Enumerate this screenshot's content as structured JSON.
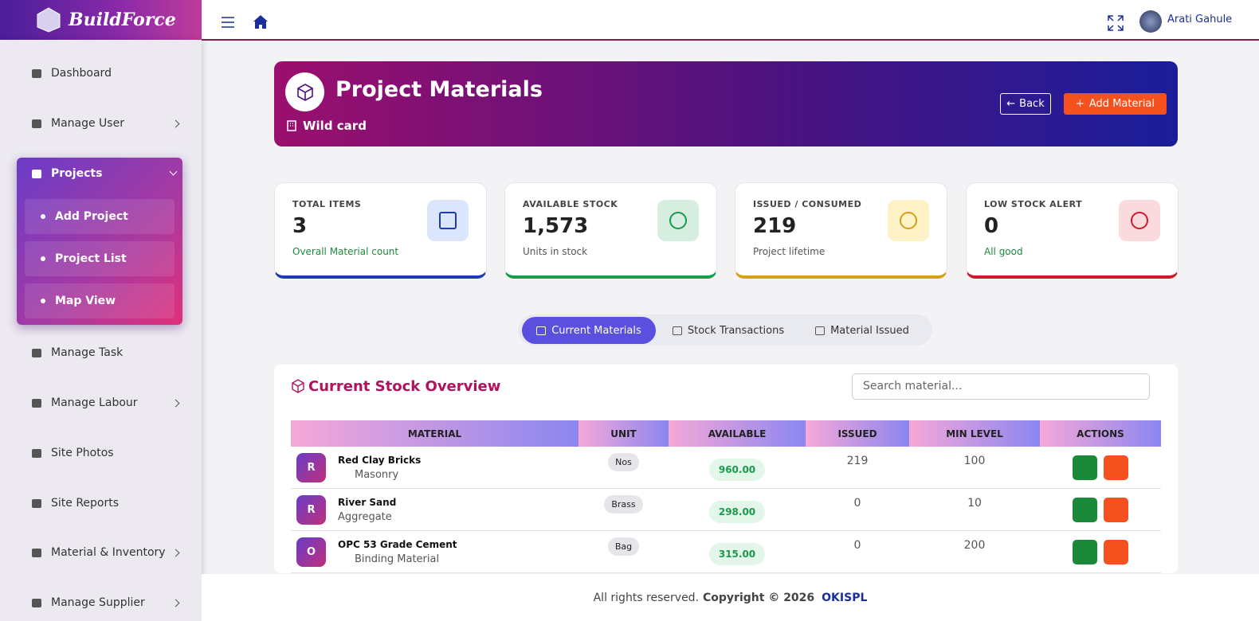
{
  "brand": "BuildForce",
  "topbar": {
    "user": "Arati Gahule"
  },
  "sidebar": {
    "items": [
      {
        "label": "Dashboard",
        "expandable": false
      },
      {
        "label": "Manage User",
        "expandable": true
      },
      {
        "label": "Projects",
        "expandable": true,
        "open": true,
        "children": [
          "Add Project",
          "Project List",
          "Map View"
        ]
      },
      {
        "label": "Manage Task",
        "expandable": false
      },
      {
        "label": "Manage Labour",
        "expandable": true
      },
      {
        "label": "Site Photos",
        "expandable": false
      },
      {
        "label": "Site Reports",
        "expandable": false
      },
      {
        "label": "Material & Inventory",
        "expandable": true
      },
      {
        "label": "Manage Supplier",
        "expandable": true
      }
    ]
  },
  "header": {
    "title": "Project Materials",
    "project": "Wild card",
    "back": "Back",
    "add": "Add Material"
  },
  "stats": [
    {
      "label": "TOTAL ITEMS",
      "value": "3",
      "note": "Overall Material count",
      "color": "#1e3bb3"
    },
    {
      "label": "AVAILABLE STOCK",
      "value": "1,573",
      "note": "Units in stock",
      "color": "#1a9a4a"
    },
    {
      "label": "ISSUED / CONSUMED",
      "value": "219",
      "note": "Project lifetime",
      "color": "#d4a017"
    },
    {
      "label": "LOW STOCK ALERT",
      "value": "0",
      "note": "All good",
      "color": "#d0182a"
    }
  ],
  "tabs": [
    "Current Materials",
    "Stock Transactions",
    "Material Issued"
  ],
  "table": {
    "title": "Current Stock Overview",
    "search": "Search material...",
    "columns": [
      "MATERIAL",
      "UNIT",
      "AVAILABLE",
      "ISSUED",
      "MIN LEVEL",
      "ACTIONS"
    ],
    "rows": [
      {
        "initial": "R",
        "name": "Red Clay Bricks",
        "category": "Masonry",
        "unit": "Nos",
        "available": "960.00",
        "issued": "219",
        "min": "100"
      },
      {
        "initial": "R",
        "name": "River Sand",
        "category": "Aggregate",
        "unit": "Brass",
        "available": "298.00",
        "issued": "0",
        "min": "10"
      },
      {
        "initial": "O",
        "name": "OPC 53 Grade Cement",
        "category": "Binding Material",
        "unit": "Bag",
        "available": "315.00",
        "issued": "0",
        "min": "200"
      }
    ]
  },
  "footer": {
    "text": "All rights reserved.",
    "copyright": "Copyright © 2026",
    "company": "OKISPL"
  }
}
